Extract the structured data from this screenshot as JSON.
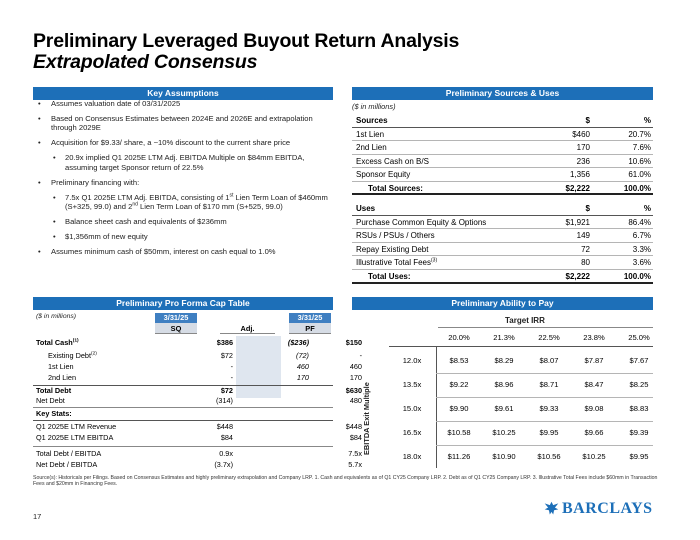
{
  "header": {
    "title": "Preliminary Leveraged Buyout Return Analysis",
    "subtitle": "Extrapolated Consensus"
  },
  "key_assumptions": {
    "header": "Key Assumptions",
    "b1": "Assumes valuation date of 03/31/2025",
    "b2": "Based on Consensus Estimates between 2024E and 2026E and extrapolation through 2029E",
    "b3": "Acquisition for $9.33/ share, a ~10% discount to the current share price",
    "s1": "20.9x implied Q1 2025E LTM Adj. EBITDA Multiple on $84mm EBITDA, assuming target Sponsor return of 22.5%",
    "b4": "Preliminary financing with:",
    "s2a": "7.5x Q1 2025E LTM Adj. EBITDA, consisting of 1",
    "s2sup1": "st",
    "s2b": " Lien Term Loan of $460mm (S+325, 99.0) and 2",
    "s2sup2": "nd",
    "s2c": " Lien Term Loan of $170 mm (S+525, 99.0)",
    "s3": "Balance sheet cash and equivalents of $236mm",
    "s4": "$1,356mm of new equity",
    "b5": "Assumes minimum cash of $50mm, interest on cash equal to 1.0%"
  },
  "sources_uses": {
    "header": "Preliminary Sources & Uses",
    "units": "($ in millions)",
    "sources_head": {
      "label": "Sources",
      "dollar": "$",
      "pct": "%"
    },
    "sources": [
      {
        "label": "1st Lien",
        "value": "$460",
        "pct": "20.7%"
      },
      {
        "label": "2nd Lien",
        "value": "170",
        "pct": "7.6%"
      },
      {
        "label": "Excess Cash on B/S",
        "value": "236",
        "pct": "10.6%"
      },
      {
        "label": "Sponsor Equity",
        "value": "1,356",
        "pct": "61.0%"
      }
    ],
    "sources_total": {
      "label": "Total Sources:",
      "value": "$2,222",
      "pct": "100.0%"
    },
    "uses_head": {
      "label": "Uses",
      "dollar": "$",
      "pct": "%"
    },
    "uses": [
      {
        "label": "Purchase Common Equity & Options",
        "value": "$1,921",
        "pct": "86.4%"
      },
      {
        "label": "RSUs / PSUs / Others",
        "value": "149",
        "pct": "6.7%"
      },
      {
        "label": "Repay Existing Debt",
        "value": "72",
        "pct": "3.3%"
      },
      {
        "label": "Illustrative Total Fees",
        "sup": "(3)",
        "value": "80",
        "pct": "3.6%"
      }
    ],
    "uses_total": {
      "label": "Total Uses:",
      "value": "$2,222",
      "pct": "100.0%"
    }
  },
  "cap_table": {
    "header": "Preliminary Pro Forma Cap Table",
    "units": "($ in millions)",
    "date1": "3/31/25",
    "date2": "3/31/25",
    "col_sq": "SQ",
    "col_adj": "Adj.",
    "col_pf": "PF",
    "total_cash": {
      "label": "Total Cash",
      "sup": "(1)",
      "sq": "$386",
      "adj": "($236)",
      "pf": "$150"
    },
    "existing_debt": {
      "label": "Existing Debt",
      "sup": "(2)",
      "sq": "$72",
      "adj": "(72)",
      "pf": "-"
    },
    "first_lien": {
      "label": "1st Lien",
      "sq": "-",
      "adj": "460",
      "pf": "460"
    },
    "second_lien": {
      "label": "2nd Lien",
      "sq": "-",
      "adj": "170",
      "pf": "170"
    },
    "total_debt": {
      "label": "Total Debt",
      "sq": "$72",
      "pf": "$630"
    },
    "net_debt": {
      "label": "Net Debt",
      "sq": "(314)",
      "pf": "480"
    },
    "key_stats": "Key Stats:",
    "revenue": {
      "label": "Q1 2025E LTM Revenue",
      "sq": "$448",
      "pf": "$448"
    },
    "ebitda": {
      "label": "Q1 2025E LTM EBITDA",
      "sq": "$84",
      "pf": "$84"
    },
    "debt_ebitda": {
      "label": "Total Debt / EBITDA",
      "sq": "0.9x",
      "pf": "7.5x"
    },
    "net_debt_ebitda": {
      "label": "Net Debt / EBITDA",
      "sq": "(3.7x)",
      "pf": "5.7x"
    }
  },
  "ability_to_pay": {
    "header": "Preliminary Ability to Pay",
    "target_label": "Target IRR",
    "axis_label": "EBITDA Exit Multiple",
    "irr": [
      "20.0%",
      "21.3%",
      "22.5%",
      "23.8%",
      "25.0%"
    ],
    "rows": [
      {
        "multiple": "12.0x",
        "values": [
          "$8.53",
          "$8.29",
          "$8.07",
          "$7.87",
          "$7.67"
        ]
      },
      {
        "multiple": "13.5x",
        "values": [
          "$9.22",
          "$8.96",
          "$8.71",
          "$8.47",
          "$8.25"
        ]
      },
      {
        "multiple": "15.0x",
        "values": [
          "$9.90",
          "$9.61",
          "$9.33",
          "$9.08",
          "$8.83"
        ]
      },
      {
        "multiple": "16.5x",
        "values": [
          "$10.58",
          "$10.25",
          "$9.95",
          "$9.66",
          "$9.39"
        ]
      },
      {
        "multiple": "18.0x",
        "values": [
          "$11.26",
          "$10.90",
          "$10.56",
          "$10.25",
          "$9.95"
        ]
      }
    ]
  },
  "footer": {
    "note": "Source(s): Historicals per Filings. Based on Consensus Estimates and highly preliminary extrapolation and Company LRP. 1. Cash and equivalents as of Q1 CY25 Company LRP. 2. Debt as of Q1 CY25 Company LRP. 3. Illustrative Total Fees include $60mm in Transaction Fees and $20mm in Financing Fees.",
    "page": "17",
    "brand": "BARCLAYS"
  }
}
